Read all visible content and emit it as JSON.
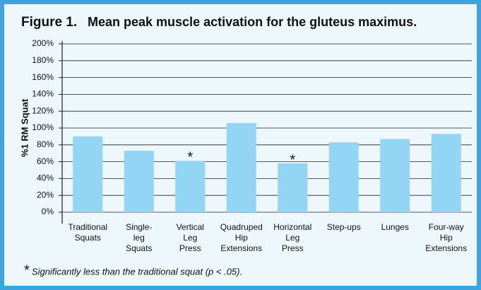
{
  "chart_data": {
    "type": "bar",
    "title_label": "Figure 1.",
    "title": "Mean peak muscle activation for the gluteus maximus.",
    "ylabel": "%1 RM Squat",
    "categories": [
      "Traditional\nSquats",
      "Single-\nleg\nSquats",
      "Vertical\nLeg\nPress",
      "Quadruped\nHip\nExtensions",
      "Horizontal\nLeg\nPress",
      "Step-ups",
      "Lunges",
      "Four-way\nHip\nExtensions"
    ],
    "values": [
      90,
      73,
      61,
      106,
      58,
      83,
      87,
      93
    ],
    "bar_notes": [
      null,
      null,
      "*",
      null,
      "*",
      null,
      null,
      null
    ],
    "color": "#93d5f4",
    "ylim": [
      0,
      200
    ],
    "yticks": [
      {
        "value": 0,
        "label": "0%"
      },
      {
        "value": 20,
        "label": "20%"
      },
      {
        "value": 40,
        "label": "40%"
      },
      {
        "value": 60,
        "label": "60%"
      },
      {
        "value": 80,
        "label": "80%"
      },
      {
        "value": 100,
        "label": "100%"
      },
      {
        "value": 120,
        "label": "120%"
      },
      {
        "value": 140,
        "label": "140%"
      },
      {
        "value": 160,
        "label": "160%"
      },
      {
        "value": 180,
        "label": "180%"
      },
      {
        "value": 200,
        "label": "200%"
      }
    ],
    "grid": true,
    "footnote_mark": "*",
    "footnote": "Significantly less than the traditional squat (p < .05)."
  }
}
